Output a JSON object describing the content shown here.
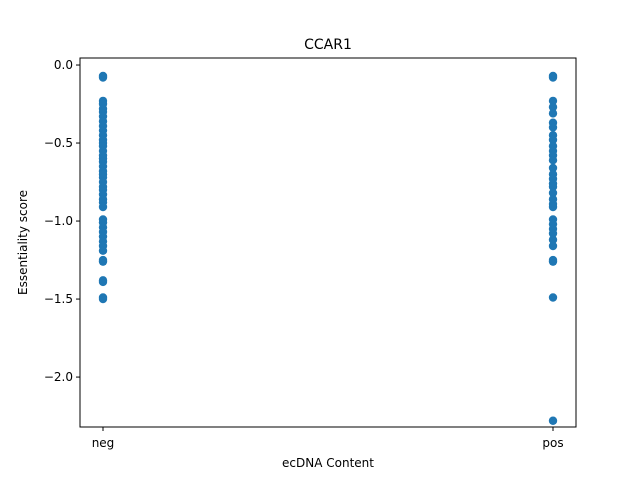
{
  "chart_data": {
    "type": "scatter",
    "title": "CCAR1",
    "xlabel": "ecDNA Content",
    "ylabel": "Essentiality score",
    "categories": [
      "neg",
      "pos"
    ],
    "ylim": [
      -2.32,
      0.045
    ],
    "yticks": [
      0.0,
      -0.5,
      -1.0,
      -1.5,
      -2.0
    ],
    "ytick_labels": [
      "0.0",
      "−0.5",
      "−1.0",
      "−1.5",
      "−2.0"
    ],
    "grid": false,
    "marker_color": "#1f77b4",
    "series": [
      {
        "x": "neg",
        "values": [
          -0.07,
          -0.08,
          -0.23,
          -0.25,
          -0.28,
          -0.3,
          -0.33,
          -0.36,
          -0.39,
          -0.42,
          -0.45,
          -0.48,
          -0.5,
          -0.52,
          -0.55,
          -0.58,
          -0.6,
          -0.62,
          -0.65,
          -0.68,
          -0.7,
          -0.72,
          -0.75,
          -0.78,
          -0.8,
          -0.83,
          -0.86,
          -0.88,
          -0.91,
          -0.99,
          -1.01,
          -1.04,
          -1.07,
          -1.1,
          -1.13,
          -1.16,
          -1.19,
          -1.25,
          -1.26,
          -1.38,
          -1.39,
          -1.49,
          -1.5
        ]
      },
      {
        "x": "pos",
        "values": [
          -0.07,
          -0.08,
          -0.23,
          -0.27,
          -0.31,
          -0.37,
          -0.4,
          -0.45,
          -0.48,
          -0.52,
          -0.55,
          -0.58,
          -0.61,
          -0.66,
          -0.7,
          -0.73,
          -0.76,
          -0.78,
          -0.82,
          -0.86,
          -0.89,
          -0.91,
          -0.99,
          -1.02,
          -1.05,
          -1.08,
          -1.12,
          -1.16,
          -1.25,
          -1.26,
          -1.49,
          -2.28
        ]
      }
    ]
  }
}
